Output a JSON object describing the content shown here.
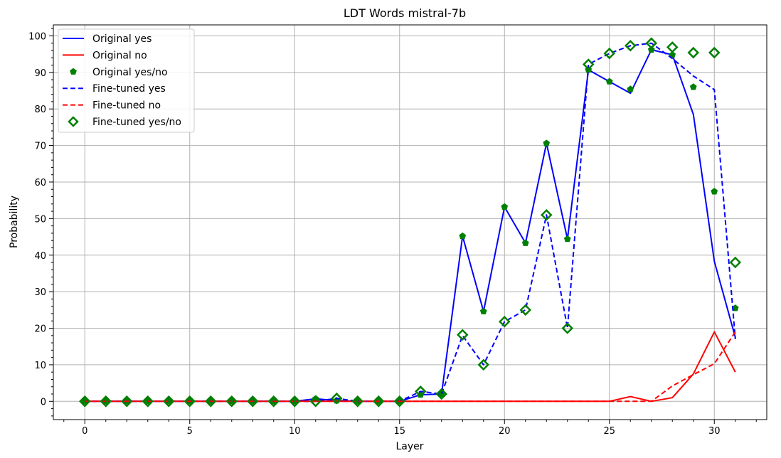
{
  "chart_data": {
    "type": "line",
    "title": "LDT Words mistral-7b",
    "xlabel": "Layer",
    "ylabel": "Probability",
    "xlim": [
      -1.5,
      32.5
    ],
    "ylim": [
      -5,
      103
    ],
    "xticks": [
      0,
      5,
      10,
      15,
      20,
      25,
      30
    ],
    "yticks": [
      0,
      10,
      20,
      30,
      40,
      50,
      60,
      70,
      80,
      90,
      100
    ],
    "grid": true,
    "legend_position": "top-left",
    "x": [
      0,
      1,
      2,
      3,
      4,
      5,
      6,
      7,
      8,
      9,
      10,
      11,
      12,
      13,
      14,
      15,
      16,
      17,
      18,
      19,
      20,
      21,
      22,
      23,
      24,
      25,
      26,
      27,
      28,
      29,
      30,
      31
    ],
    "series": [
      {
        "name": "Original yes",
        "style": "solid",
        "color": "#0000ff",
        "values": [
          0,
          0,
          0,
          0,
          0,
          0,
          0,
          0,
          0,
          0,
          0,
          0.7,
          0.2,
          0,
          0,
          0,
          1.8,
          2,
          45.2,
          24.6,
          53.2,
          43.3,
          70.6,
          44.4,
          90.7,
          87.5,
          84.3,
          96.2,
          94.8,
          78.5,
          38.3,
          17.5
        ]
      },
      {
        "name": "Original no",
        "style": "solid",
        "color": "#ff0000",
        "values": [
          0,
          0,
          0,
          0,
          0,
          0,
          0,
          0,
          0,
          0,
          0,
          0,
          0,
          0,
          0,
          0,
          0,
          0,
          0,
          0,
          0,
          0,
          0,
          0,
          0,
          0,
          1.3,
          0,
          1,
          7.5,
          19,
          8
        ]
      },
      {
        "name": "Original yes/no",
        "style": "marker-pentagon",
        "color": "#008000",
        "values": [
          0,
          0,
          0,
          0,
          0,
          0,
          0,
          0,
          0,
          0,
          0,
          0.7,
          0.2,
          0,
          0,
          0,
          1.8,
          2,
          45.2,
          24.6,
          53.2,
          43.3,
          70.6,
          44.4,
          90.7,
          87.5,
          85.4,
          96.2,
          94.8,
          86,
          57.4,
          25.5
        ]
      },
      {
        "name": "Fine-tuned yes",
        "style": "dashed",
        "color": "#0000ff",
        "values": [
          0,
          0,
          0,
          0,
          0,
          0,
          0,
          0,
          0,
          0,
          0,
          0,
          0.8,
          0,
          0,
          0,
          2.7,
          2,
          18,
          10,
          21.8,
          25,
          51,
          20,
          92.2,
          95.2,
          97.3,
          98,
          93.8,
          89,
          85.3,
          17
        ]
      },
      {
        "name": "Fine-tuned no",
        "style": "dashed",
        "color": "#ff0000",
        "values": [
          0,
          0,
          0,
          0,
          0,
          0,
          0,
          0,
          0,
          0,
          0,
          0,
          0,
          0,
          0,
          0,
          0,
          0,
          0,
          0,
          0,
          0,
          0,
          0,
          0,
          0,
          0,
          0,
          4.2,
          7.3,
          10.3,
          19
        ]
      },
      {
        "name": "Fine-tuned yes/no",
        "style": "marker-diamond",
        "color": "#008000",
        "values": [
          0,
          0,
          0,
          0,
          0,
          0,
          0,
          0,
          0,
          0,
          0,
          0,
          0.8,
          0,
          0,
          0,
          2.7,
          2,
          18.2,
          10,
          21.8,
          25,
          51,
          20,
          92.2,
          95.2,
          97.3,
          98,
          96.9,
          95.4,
          95.4,
          38
        ]
      }
    ]
  }
}
